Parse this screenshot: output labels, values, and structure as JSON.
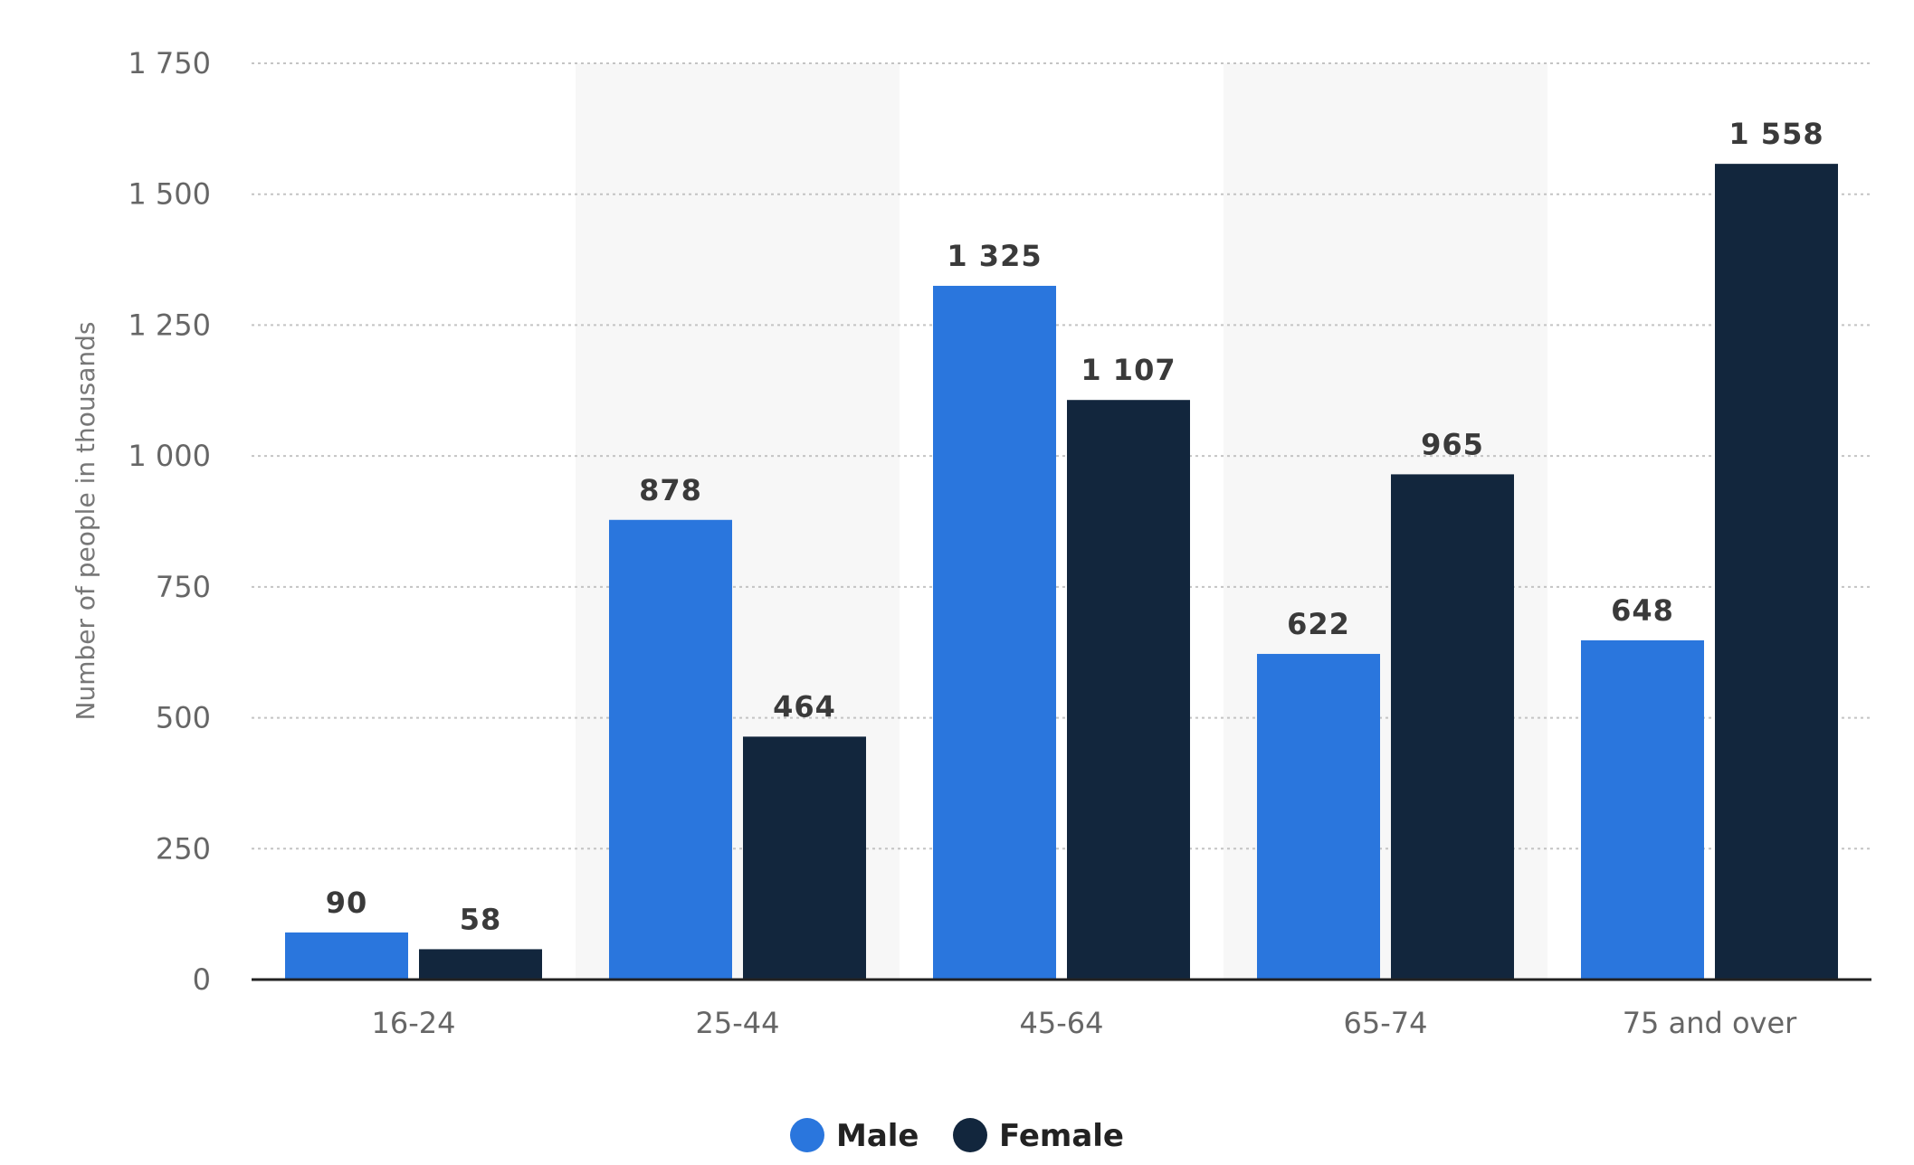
{
  "chart_data": {
    "type": "bar",
    "categories": [
      "16-24",
      "25-44",
      "45-64",
      "65-74",
      "75 and over"
    ],
    "series": [
      {
        "name": "Male",
        "values": [
          90,
          878,
          1325,
          622,
          648
        ],
        "labels": [
          "90",
          "878",
          "1 325",
          "622",
          "648"
        ],
        "color": "#2a76dd"
      },
      {
        "name": "Female",
        "values": [
          58,
          464,
          1107,
          965,
          1558
        ],
        "labels": [
          "58",
          "464",
          "1 107",
          "965",
          "1 558"
        ],
        "color": "#12263d"
      }
    ],
    "ylabel": "Number of people in thousands",
    "xlabel": "",
    "ylim": [
      0,
      1750
    ],
    "yticks": [
      0,
      250,
      500,
      750,
      1000,
      1250,
      1500,
      1750
    ],
    "ytick_labels": [
      "0",
      "250",
      "500",
      "750",
      "1 000",
      "1 250",
      "1 500",
      "1 750"
    ],
    "grid": true,
    "legend": "bottom-center",
    "alternating_band_color": "#f7f7f7"
  }
}
